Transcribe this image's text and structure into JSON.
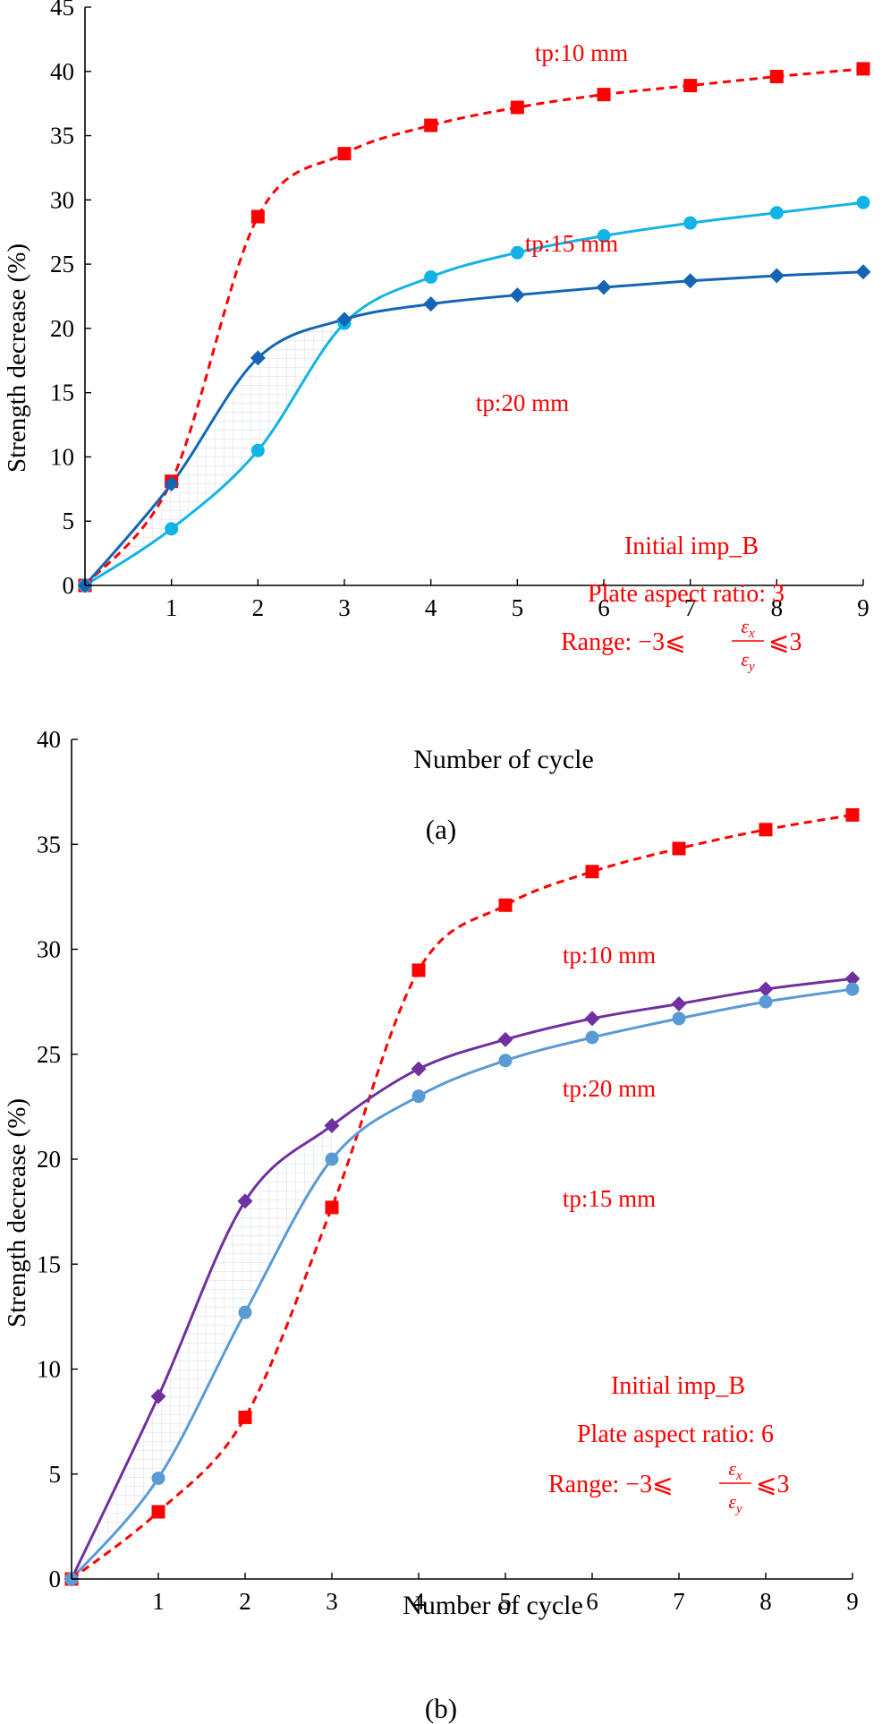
{
  "chart_data": [
    {
      "type": "line",
      "panel_label": "(a)",
      "xlabel": "Number of cycle",
      "ylabel": "Strength decrease (%)",
      "x": [
        0,
        1,
        2,
        3,
        4,
        5,
        6,
        7,
        8,
        9
      ],
      "xticks": [
        "",
        "1",
        "2",
        "3",
        "4",
        "5",
        "6",
        "7",
        "8",
        "9"
      ],
      "xlim": [
        0,
        9
      ],
      "ylim": [
        0,
        45
      ],
      "yticks": [
        "0",
        "5",
        "10",
        "15",
        "20",
        "25",
        "30",
        "35",
        "40",
        "45"
      ],
      "series": [
        {
          "name": "tp:10 mm",
          "color": "#ff0000",
          "marker": "square",
          "dashed": true,
          "values": [
            0,
            8.1,
            28.7,
            33.6,
            35.8,
            37.2,
            38.2,
            38.9,
            39.6,
            40.2
          ]
        },
        {
          "name": "tp:15 mm",
          "color": "#12b4e6",
          "marker": "circle",
          "dashed": false,
          "values": [
            0,
            4.4,
            10.5,
            20.4,
            24.0,
            25.9,
            27.2,
            28.2,
            29.0,
            29.8
          ]
        },
        {
          "name": "tp:20 mm",
          "color": "#1565b5",
          "marker": "diamond",
          "dashed": false,
          "values": [
            0,
            7.9,
            17.7,
            20.7,
            21.9,
            22.6,
            23.2,
            23.7,
            24.1,
            24.4
          ]
        }
      ],
      "annotations": {
        "imp": "Initial imp_B",
        "aspect": "Plate aspect ratio: 3",
        "range_prefix": "Range: −3⩽",
        "range_num": "ε",
        "range_num_sub": "x",
        "range_den": "ε",
        "range_den_sub": "y",
        "range_suffix": "⩽3"
      }
    },
    {
      "type": "line",
      "panel_label": "(b)",
      "xlabel": "Number of cycle",
      "ylabel": "Strength decrease (%)",
      "x": [
        0,
        1,
        2,
        3,
        4,
        5,
        6,
        7,
        8,
        9
      ],
      "xticks": [
        "",
        "1",
        "2",
        "3",
        "4",
        "5",
        "6",
        "7",
        "8",
        "9"
      ],
      "xlim": [
        0,
        9
      ],
      "ylim": [
        0,
        40
      ],
      "yticks": [
        "0",
        "5",
        "10",
        "15",
        "20",
        "25",
        "30",
        "35",
        "40"
      ],
      "series": [
        {
          "name": "tp:10 mm",
          "color": "#ff0000",
          "marker": "square",
          "dashed": true,
          "values": [
            0,
            3.2,
            7.7,
            17.7,
            29.0,
            32.1,
            33.7,
            34.8,
            35.7,
            36.4
          ]
        },
        {
          "name": "tp:20 mm",
          "color": "#7030a0",
          "marker": "diamond",
          "dashed": false,
          "values": [
            0,
            8.7,
            18.0,
            21.6,
            24.3,
            25.7,
            26.7,
            27.4,
            28.1,
            28.6
          ]
        },
        {
          "name": "tp:15 mm",
          "color": "#5b9bd5",
          "marker": "circle",
          "dashed": false,
          "values": [
            0,
            4.8,
            12.7,
            20.0,
            23.0,
            24.7,
            25.8,
            26.7,
            27.5,
            28.1
          ]
        }
      ],
      "annotations": {
        "imp": "Initial imp_B",
        "aspect": "Plate aspect ratio: 6",
        "range_prefix": "Range: −3⩽",
        "range_num": "ε",
        "range_num_sub": "x",
        "range_den": "ε",
        "range_den_sub": "y",
        "range_suffix": "⩽3"
      }
    }
  ]
}
